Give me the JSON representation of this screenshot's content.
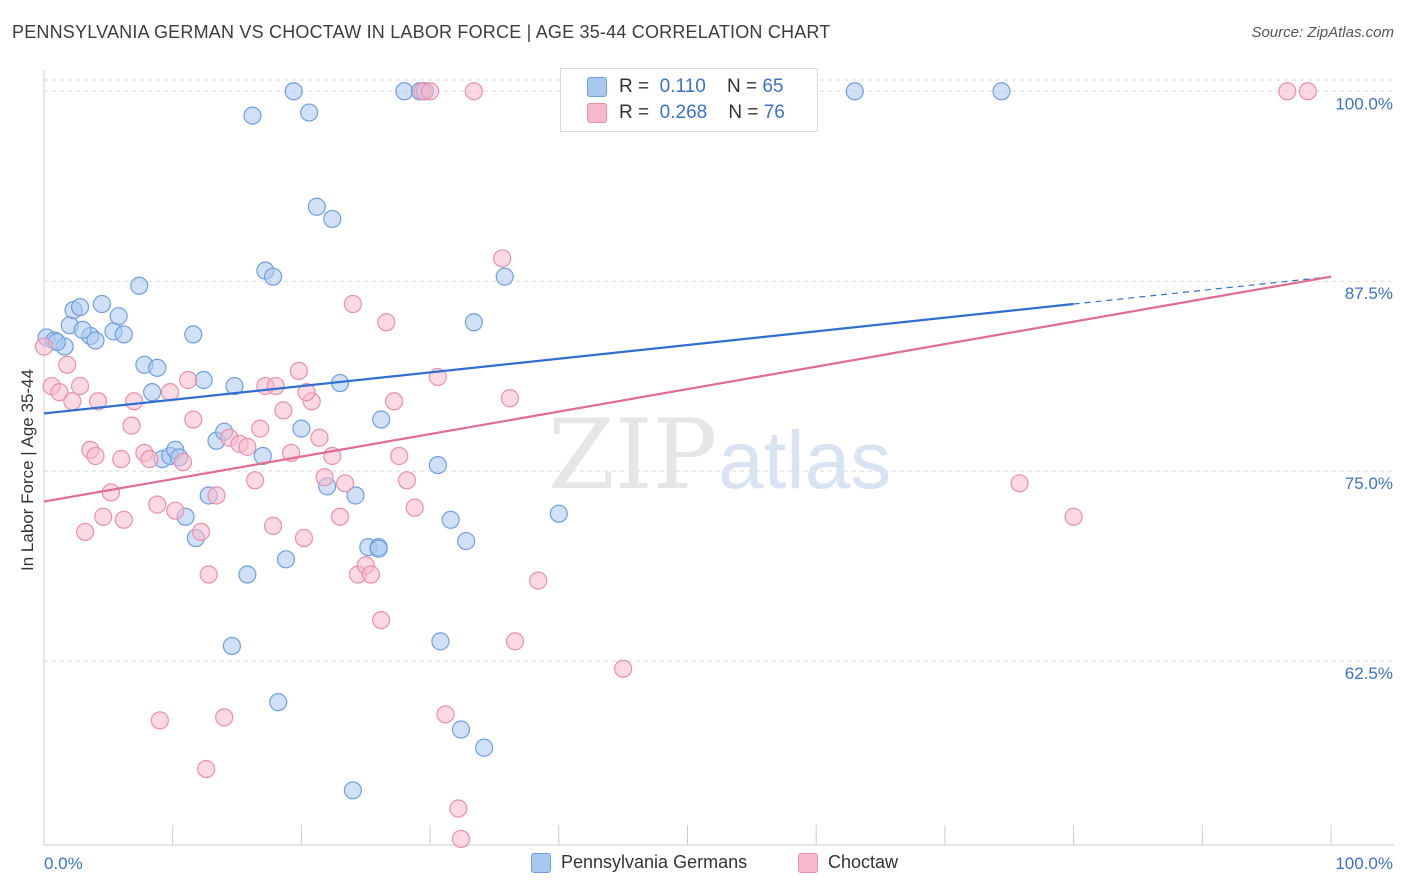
{
  "title": "PENNSYLVANIA GERMAN VS CHOCTAW IN LABOR FORCE | AGE 35-44 CORRELATION CHART",
  "source": "Source: ZipAtlas.com",
  "watermark": {
    "zip": "ZIP",
    "atlas": "atlas"
  },
  "legend": {
    "r_label": "R =",
    "n_label": "N =",
    "series": [
      {
        "r": "0.110",
        "n": "65"
      },
      {
        "r": "0.268",
        "n": "76"
      }
    ]
  },
  "bottom_legend": [
    "Pennsylvania Germans",
    "Choctaw"
  ],
  "colors": {
    "blue_fill": "#a9c8f0",
    "blue_stroke": "#6f9fe0",
    "blue_line": "#2f6fcf",
    "pink_fill": "#f7b9cc",
    "pink_stroke": "#ec8fab",
    "pink_line": "#e06c92",
    "axis_text": "#3a72c9",
    "grid": "#d9d9d9"
  },
  "chart_data": {
    "type": "scatter",
    "title": "PENNSYLVANIA GERMAN VS CHOCTAW IN LABOR FORCE | AGE 35-44 CORRELATION CHART",
    "xlabel": "",
    "ylabel": "In Labor Force | Age 35-44",
    "xlim": [
      0,
      100
    ],
    "ylim": [
      50.4,
      101.4
    ],
    "x_tick_labels": [
      "0.0%",
      "100.0%"
    ],
    "y_ticks": [
      62.5,
      75.0,
      87.5,
      100.0
    ],
    "y_tick_labels": [
      "62.5%",
      "75.0%",
      "87.5%",
      "100.0%"
    ],
    "grid": "horizontal dashed",
    "legend_position": "top-center",
    "series": [
      {
        "name": "Pennsylvania Germans",
        "color": "#a9c8f0",
        "r": 0.11,
        "n": 65,
        "trend": {
          "x0": 0,
          "y0": 78.8,
          "x1": 80,
          "y1": 86.0,
          "dash_to_x": 100,
          "dash_to_y": 87.8
        },
        "points": [
          [
            0.2,
            83.8
          ],
          [
            0.8,
            83.6
          ],
          [
            1.6,
            83.2
          ],
          [
            2.0,
            84.6
          ],
          [
            2.3,
            85.6
          ],
          [
            2.8,
            85.8
          ],
          [
            3.6,
            83.9
          ],
          [
            4.0,
            83.6
          ],
          [
            4.5,
            86.0
          ],
          [
            5.4,
            84.2
          ],
          [
            5.8,
            85.2
          ],
          [
            6.2,
            84.0
          ],
          [
            7.4,
            87.2
          ],
          [
            7.8,
            82.0
          ],
          [
            8.4,
            80.2
          ],
          [
            8.8,
            81.8
          ],
          [
            9.2,
            75.8
          ],
          [
            9.8,
            76.0
          ],
          [
            10.2,
            76.4
          ],
          [
            11.0,
            72.0
          ],
          [
            11.6,
            84.0
          ],
          [
            11.8,
            70.6
          ],
          [
            12.4,
            81.0
          ],
          [
            12.8,
            73.4
          ],
          [
            13.4,
            77.0
          ],
          [
            14.0,
            77.6
          ],
          [
            14.6,
            63.5
          ],
          [
            14.8,
            80.6
          ],
          [
            15.8,
            68.2
          ],
          [
            16.2,
            98.4
          ],
          [
            17.0,
            76.0
          ],
          [
            17.2,
            88.2
          ],
          [
            17.8,
            87.8
          ],
          [
            18.2,
            59.8
          ],
          [
            18.8,
            69.2
          ],
          [
            19.4,
            100.0
          ],
          [
            20.0,
            77.8
          ],
          [
            20.6,
            98.6
          ],
          [
            21.2,
            92.4
          ],
          [
            22.0,
            74.0
          ],
          [
            22.4,
            91.6
          ],
          [
            23.0,
            80.8
          ],
          [
            24.0,
            54.0
          ],
          [
            24.2,
            73.4
          ],
          [
            25.2,
            70.0
          ],
          [
            26.0,
            70.0
          ],
          [
            26.2,
            78.4
          ],
          [
            28.0,
            100.0
          ],
          [
            29.2,
            100.0
          ],
          [
            29.6,
            100.0
          ],
          [
            30.6,
            75.4
          ],
          [
            30.8,
            63.8
          ],
          [
            31.6,
            71.8
          ],
          [
            32.4,
            58.0
          ],
          [
            32.8,
            70.4
          ],
          [
            33.4,
            84.8
          ],
          [
            34.2,
            56.8
          ],
          [
            35.8,
            87.8
          ],
          [
            40.0,
            72.2
          ],
          [
            63.0,
            100.0
          ],
          [
            74.4,
            100.0
          ],
          [
            1.0,
            83.5
          ],
          [
            3.0,
            84.3
          ],
          [
            10.5,
            75.9
          ],
          [
            26.0,
            69.9
          ]
        ]
      },
      {
        "name": "Choctaw",
        "color": "#f7b9cc",
        "r": 0.268,
        "n": 76,
        "trend": {
          "x0": 0,
          "y0": 73.0,
          "x1": 100,
          "y1": 87.8
        },
        "points": [
          [
            0.0,
            83.2
          ],
          [
            0.6,
            80.6
          ],
          [
            1.2,
            80.2
          ],
          [
            1.8,
            82.0
          ],
          [
            2.2,
            79.6
          ],
          [
            2.8,
            80.6
          ],
          [
            3.2,
            71.0
          ],
          [
            3.6,
            76.4
          ],
          [
            4.0,
            76.0
          ],
          [
            4.6,
            72.0
          ],
          [
            5.2,
            73.6
          ],
          [
            6.0,
            75.8
          ],
          [
            6.2,
            71.8
          ],
          [
            6.8,
            78.0
          ],
          [
            7.0,
            79.6
          ],
          [
            7.8,
            76.2
          ],
          [
            8.2,
            75.8
          ],
          [
            8.8,
            72.8
          ],
          [
            9.0,
            58.6
          ],
          [
            9.8,
            80.2
          ],
          [
            10.2,
            72.4
          ],
          [
            10.8,
            75.6
          ],
          [
            11.2,
            81.0
          ],
          [
            11.6,
            78.4
          ],
          [
            12.2,
            71.0
          ],
          [
            12.8,
            68.2
          ],
          [
            12.6,
            55.4
          ],
          [
            13.4,
            73.4
          ],
          [
            14.0,
            58.8
          ],
          [
            14.4,
            77.2
          ],
          [
            15.2,
            76.8
          ],
          [
            15.8,
            76.6
          ],
          [
            16.4,
            74.4
          ],
          [
            16.8,
            77.8
          ],
          [
            17.2,
            80.6
          ],
          [
            17.8,
            71.4
          ],
          [
            18.0,
            80.6
          ],
          [
            18.6,
            79.0
          ],
          [
            19.2,
            76.2
          ],
          [
            19.8,
            81.6
          ],
          [
            20.2,
            70.6
          ],
          [
            20.8,
            79.6
          ],
          [
            21.4,
            77.2
          ],
          [
            21.8,
            74.6
          ],
          [
            22.4,
            76.0
          ],
          [
            23.0,
            72.0
          ],
          [
            23.4,
            74.2
          ],
          [
            24.0,
            86.0
          ],
          [
            24.4,
            68.2
          ],
          [
            25.0,
            68.8
          ],
          [
            25.4,
            68.2
          ],
          [
            26.2,
            65.2
          ],
          [
            26.6,
            84.8
          ],
          [
            27.2,
            79.6
          ],
          [
            27.6,
            76.0
          ],
          [
            28.2,
            74.4
          ],
          [
            28.8,
            72.6
          ],
          [
            29.4,
            100.0
          ],
          [
            30.6,
            81.2
          ],
          [
            31.2,
            59.0
          ],
          [
            32.2,
            52.8
          ],
          [
            32.4,
            50.8
          ],
          [
            33.4,
            100.0
          ],
          [
            35.6,
            89.0
          ],
          [
            36.2,
            79.8
          ],
          [
            36.6,
            63.8
          ],
          [
            38.4,
            67.8
          ],
          [
            45.0,
            62.0
          ],
          [
            46.8,
            100.0
          ],
          [
            75.8,
            74.2
          ],
          [
            80.0,
            72.0
          ],
          [
            96.6,
            100.0
          ],
          [
            98.2,
            100.0
          ],
          [
            30.0,
            100.0
          ],
          [
            4.2,
            79.6
          ],
          [
            20.4,
            80.2
          ]
        ]
      }
    ]
  }
}
